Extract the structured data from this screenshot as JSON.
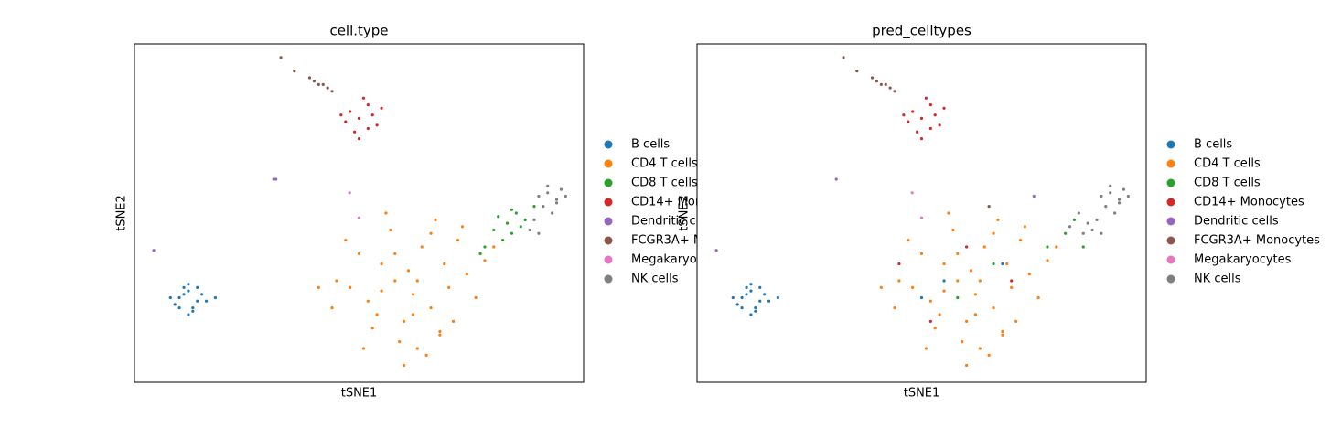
{
  "chart_data": [
    {
      "type": "scatter",
      "title": "cell.type",
      "xlabel": "tSNE1",
      "ylabel": "tSNE2",
      "xlim": [
        0,
        100
      ],
      "ylim": [
        0,
        100
      ],
      "legend": "right",
      "series": [
        {
          "name": "B cells",
          "color": "#1f77b4",
          "x": [
            10,
            12,
            14,
            13,
            11,
            9,
            15,
            12,
            8,
            16,
            13,
            11,
            10,
            14,
            12,
            18
          ],
          "y": [
            25,
            27,
            24,
            22,
            26,
            23,
            26,
            29,
            25,
            24,
            21,
            28,
            22,
            28,
            20,
            25
          ]
        },
        {
          "name": "CD4 T cells",
          "color": "#ff7f0e",
          "x": [
            62,
            58,
            66,
            55,
            70,
            60,
            64,
            52,
            74,
            48,
            68,
            57,
            63,
            50,
            72,
            45,
            78,
            61,
            54,
            67,
            59,
            65,
            44,
            76,
            56,
            69,
            53,
            71,
            60,
            47,
            80,
            63,
            58,
            66,
            41,
            73,
            51,
            62,
            68,
            55
          ],
          "y": [
            26,
            30,
            22,
            35,
            28,
            18,
            40,
            24,
            32,
            28,
            15,
            45,
            10,
            38,
            42,
            30,
            36,
            33,
            20,
            48,
            12,
            8,
            22,
            25,
            50,
            35,
            16,
            18,
            5,
            42,
            40,
            30,
            38,
            44,
            28,
            46,
            10,
            20,
            14,
            27
          ]
        },
        {
          "name": "CD8 T cells",
          "color": "#2ca02c",
          "x": [
            80,
            83,
            85,
            87,
            82,
            84,
            78,
            86,
            89,
            81,
            84,
            77
          ],
          "y": [
            45,
            47,
            50,
            48,
            42,
            44,
            40,
            46,
            52,
            49,
            51,
            38
          ]
        },
        {
          "name": "CD14+ Monocytes",
          "color": "#d62728",
          "x": [
            48,
            50,
            52,
            54,
            49,
            51,
            53,
            47,
            50,
            55,
            46,
            52
          ],
          "y": [
            80,
            78,
            82,
            76,
            74,
            84,
            79,
            77,
            72,
            81,
            79,
            75
          ]
        },
        {
          "name": "Dendritic cells",
          "color": "#9467bd",
          "x": [
            31,
            31.5,
            4.3
          ],
          "y": [
            60,
            60,
            39
          ]
        },
        {
          "name": "FCGR3A+ Monocytes",
          "color": "#8c564b",
          "x": [
            39,
            40,
            41,
            42,
            43,
            44,
            32.6,
            35.6
          ],
          "y": [
            90,
            89,
            88,
            88,
            87,
            86,
            96,
            92
          ]
        },
        {
          "name": "Megakaryocytes",
          "color": "#e377c2",
          "x": [
            47.9,
            50
          ],
          "y": [
            56,
            48.6
          ]
        },
        {
          "name": "NK cells",
          "color": "#7f7f7f",
          "x": [
            90,
            92,
            94,
            95,
            91,
            93,
            96,
            89,
            92,
            88,
            94,
            90
          ],
          "y": [
            55,
            56,
            54,
            57,
            52,
            50,
            55,
            48,
            58,
            45,
            53,
            44
          ]
        }
      ]
    },
    {
      "type": "scatter",
      "title": "pred_celltypes",
      "xlabel": "tSNE1",
      "ylabel": "tSNE2",
      "xlim": [
        0,
        100
      ],
      "ylim": [
        0,
        100
      ],
      "legend": "right",
      "series": [
        {
          "name": "B cells",
          "color": "#1f77b4",
          "x": [
            10,
            12,
            14,
            13,
            11,
            9,
            15,
            12,
            8,
            16,
            13,
            11,
            10,
            14,
            12,
            18,
            55,
            62,
            68,
            50
          ],
          "y": [
            25,
            27,
            24,
            22,
            26,
            23,
            26,
            29,
            25,
            24,
            21,
            28,
            22,
            28,
            20,
            25,
            30,
            20,
            35,
            25
          ]
        },
        {
          "name": "CD4 T cells",
          "color": "#ff7f0e",
          "x": [
            62,
            58,
            66,
            55,
            70,
            60,
            64,
            52,
            74,
            48,
            68,
            57,
            63,
            50,
            72,
            45,
            78,
            61,
            54,
            67,
            59,
            65,
            44,
            76,
            56,
            69,
            53,
            71,
            60,
            47,
            80,
            63,
            58,
            66,
            41,
            73,
            51,
            62,
            68,
            55
          ],
          "y": [
            26,
            30,
            22,
            35,
            28,
            18,
            40,
            24,
            32,
            28,
            15,
            45,
            10,
            38,
            42,
            30,
            36,
            33,
            20,
            48,
            12,
            8,
            22,
            25,
            50,
            35,
            16,
            18,
            5,
            42,
            40,
            30,
            38,
            44,
            28,
            46,
            10,
            20,
            14,
            27
          ]
        },
        {
          "name": "CD8 T cells",
          "color": "#2ca02c",
          "x": [
            82,
            84,
            78,
            66,
            58,
            86
          ],
          "y": [
            44,
            48,
            40,
            35,
            25,
            40
          ]
        },
        {
          "name": "CD14+ Monocytes",
          "color": "#d62728",
          "x": [
            48,
            50,
            52,
            54,
            49,
            51,
            53,
            47,
            50,
            55,
            46,
            52,
            60,
            52,
            70,
            45
          ],
          "y": [
            80,
            78,
            82,
            76,
            74,
            84,
            79,
            77,
            72,
            81,
            79,
            75,
            40,
            18,
            30,
            35
          ]
        },
        {
          "name": "Dendritic cells",
          "color": "#9467bd",
          "x": [
            31,
            4.3,
            75
          ],
          "y": [
            60,
            39,
            55
          ]
        },
        {
          "name": "FCGR3A+ Monocytes",
          "color": "#8c564b",
          "x": [
            39,
            40,
            41,
            42,
            43,
            44,
            32.6,
            35.6,
            65
          ],
          "y": [
            90,
            89,
            88,
            88,
            87,
            86,
            96,
            92,
            52
          ]
        },
        {
          "name": "Megakaryocytes",
          "color": "#e377c2",
          "x": [
            47.9,
            50
          ],
          "y": [
            56,
            48.6
          ]
        },
        {
          "name": "NK cells",
          "color": "#7f7f7f",
          "x": [
            90,
            92,
            94,
            95,
            91,
            93,
            96,
            89,
            92,
            88,
            94,
            90,
            85,
            87,
            83,
            86
          ],
          "y": [
            55,
            56,
            54,
            57,
            52,
            50,
            55,
            48,
            58,
            45,
            53,
            44,
            50,
            47,
            46,
            44
          ]
        }
      ]
    }
  ]
}
